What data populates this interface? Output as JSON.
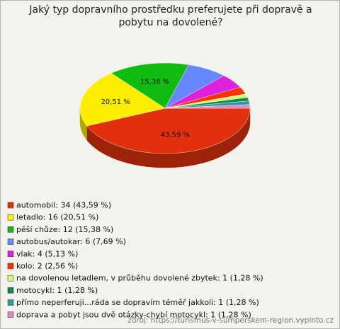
{
  "chart_data": {
    "type": "pie",
    "title": "Jaký typ dopravního prostředku preferujete při dopravě a pobytu na dovolené?",
    "categories": [
      "automobil: 34 (43,59 %)",
      "letadlo: 16 (20,51 %)",
      "pěší chůze: 12 (15,38 %)",
      "autobus/autokar: 6 (7,69 %)",
      "vlak: 4 (5,13 %)",
      "kolo: 2 (2,56 %)",
      "na dovolenou letadlem, v průběhu dovolené zbytek: 1 (1,28 %)",
      "motocykl: 1 (1,28 %)",
      "přímo neperferuji...ráda se dopravím téměř jakkoli: 1 (1,28 %)",
      "doprava a pobyt jsou dvě otázky-chybí motocykl: 1 (1,28 %)"
    ],
    "values": [
      43.59,
      20.51,
      15.38,
      7.69,
      5.13,
      2.56,
      1.28,
      1.28,
      1.28,
      1.28
    ],
    "value_labels": [
      "43,59 %",
      "20,51 %",
      "15,38 %",
      null,
      null,
      null,
      null,
      null,
      null,
      null
    ],
    "colors": [
      "#e0300e",
      "#ffee00",
      "#11bb11",
      "#6688ff",
      "#dd22dd",
      "#ff3300",
      "#ccff77",
      "#118855",
      "#339999",
      "#dd88cc"
    ],
    "source": "zdroj: https://turismus-v-sumperskem-region.vyplnto.cz"
  }
}
